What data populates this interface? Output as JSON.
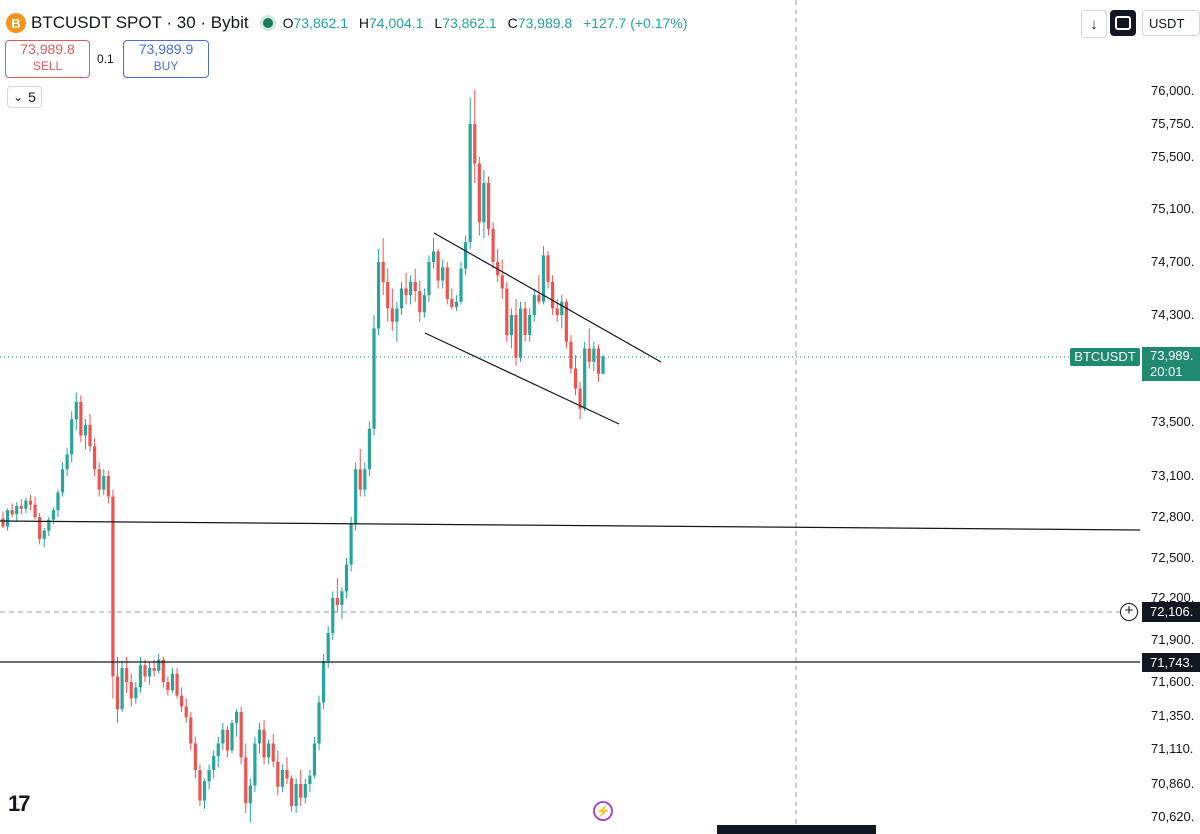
{
  "header": {
    "coin_icon": "B",
    "symbol": "BTCUSDT SPOT · 30 · Bybit",
    "ohlc": {
      "o_label": "O",
      "o": "73,862.1",
      "h_label": "H",
      "h": "74,004.1",
      "l_label": "L",
      "l": "73,862.1",
      "c_label": "C",
      "c": "73,989.8",
      "change": "+127.7 (+0.17%)"
    }
  },
  "trade": {
    "sell_price": "73,989.8",
    "sell_label": "SELL",
    "qty": "0.1",
    "buy_price": "73,989.9",
    "buy_label": "BUY"
  },
  "collapse": {
    "chevron": "⌄",
    "count": "5"
  },
  "toolbar": {
    "down_icon": "↓",
    "currency": "USDT"
  },
  "price_tag": {
    "name": "BTCUSDT",
    "price": "73,989.",
    "countdown": "20:01"
  },
  "ghost_tag": {
    "price": "72,106."
  },
  "hline_tag": {
    "price": "71,743."
  },
  "footer": {
    "logo": "17",
    "flash_icon": "⚡"
  },
  "colors": {
    "up": "#26a69a",
    "down": "#ef5350",
    "price_line": "#1f8a70",
    "drawing": "#131722",
    "dashed": "#9aa0a6"
  },
  "chart_data": {
    "type": "candlestick",
    "symbol": "BTCUSDT SPOT",
    "interval": "30",
    "exchange": "Bybit",
    "y_tick_labels": [
      "76,000.",
      "75,750.",
      "75,500.",
      "75,100.",
      "74,700.",
      "74,300.",
      "73,989.",
      "73,500.",
      "73,100.",
      "72,800.",
      "72,500.",
      "72,200.",
      "72,106.",
      "71,900.",
      "71,743.",
      "71,600.",
      "71,350.",
      "71,110.",
      "70,860.",
      "70,620."
    ],
    "price_ticks": [
      76000,
      75750,
      75500,
      75100,
      74700,
      74300,
      73500,
      73100,
      72800,
      72500,
      72200,
      71900,
      71600,
      71350,
      71110,
      70860,
      70620
    ],
    "ylim": [
      70570,
      76090
    ],
    "last_price": 73989.8,
    "horizontal_lines": [
      {
        "kind": "trendline",
        "from": 72780,
        "to": 72740
      },
      {
        "kind": "solid",
        "price": 71743
      },
      {
        "kind": "dashed",
        "price": 72106
      }
    ],
    "channel": [
      {
        "from": 74910,
        "to": 74000
      },
      {
        "from": 74220,
        "to": 73460
      }
    ],
    "candles": [
      [
        72790,
        72840,
        72720,
        72730
      ],
      [
        72730,
        72860,
        72700,
        72850
      ],
      [
        72850,
        72900,
        72800,
        72820
      ],
      [
        72820,
        72910,
        72770,
        72880
      ],
      [
        72880,
        72930,
        72820,
        72860
      ],
      [
        72860,
        72940,
        72830,
        72920
      ],
      [
        72920,
        72960,
        72850,
        72890
      ],
      [
        72890,
        72950,
        72780,
        72800
      ],
      [
        72800,
        72830,
        72600,
        72640
      ],
      [
        72640,
        72720,
        72580,
        72700
      ],
      [
        72700,
        72800,
        72660,
        72780
      ],
      [
        72780,
        72870,
        72750,
        72850
      ],
      [
        72850,
        73000,
        72800,
        72980
      ],
      [
        72980,
        73200,
        72950,
        73150
      ],
      [
        73150,
        73310,
        73100,
        73260
      ],
      [
        73260,
        73580,
        73200,
        73520
      ],
      [
        73520,
        73720,
        73440,
        73650
      ],
      [
        73650,
        73700,
        73350,
        73400
      ],
      [
        73400,
        73520,
        73300,
        73480
      ],
      [
        73480,
        73560,
        73280,
        73320
      ],
      [
        73320,
        73380,
        73100,
        73150
      ],
      [
        73150,
        73200,
        72950,
        73000
      ],
      [
        73000,
        73150,
        72960,
        73100
      ],
      [
        73100,
        73140,
        72900,
        72950
      ],
      [
        72950,
        73000,
        71480,
        71640
      ],
      [
        71640,
        71780,
        71300,
        71400
      ],
      [
        71400,
        71750,
        71380,
        71700
      ],
      [
        71700,
        71780,
        71520,
        71600
      ],
      [
        71600,
        71660,
        71420,
        71480
      ],
      [
        71480,
        71600,
        71440,
        71560
      ],
      [
        71560,
        71780,
        71520,
        71720
      ],
      [
        71720,
        71760,
        71600,
        71640
      ],
      [
        71640,
        71740,
        71580,
        71700
      ],
      [
        71700,
        71760,
        71640,
        71680
      ],
      [
        71680,
        71800,
        71660,
        71760
      ],
      [
        71760,
        71780,
        71560,
        71600
      ],
      [
        71600,
        71640,
        71500,
        71540
      ],
      [
        71540,
        71700,
        71520,
        71660
      ],
      [
        71660,
        71700,
        71480,
        71500
      ],
      [
        71500,
        71560,
        71380,
        71420
      ],
      [
        71420,
        71480,
        71300,
        71340
      ],
      [
        71340,
        71380,
        71100,
        71150
      ],
      [
        71150,
        71200,
        70900,
        70960
      ],
      [
        70960,
        71000,
        70700,
        70740
      ],
      [
        70740,
        70900,
        70680,
        70880
      ],
      [
        70880,
        71000,
        70820,
        70960
      ],
      [
        70960,
        71100,
        70900,
        71060
      ],
      [
        71060,
        71200,
        70980,
        71150
      ],
      [
        71150,
        71300,
        71100,
        71250
      ],
      [
        71250,
        71280,
        71050,
        71100
      ],
      [
        71100,
        71320,
        71080,
        71300
      ],
      [
        71300,
        71400,
        71200,
        71380
      ],
      [
        71380,
        71420,
        71000,
        71050
      ],
      [
        71050,
        71150,
        70650,
        70720
      ],
      [
        70720,
        70900,
        70580,
        70850
      ],
      [
        70850,
        71200,
        70800,
        71150
      ],
      [
        71150,
        71300,
        71080,
        71250
      ],
      [
        71250,
        71320,
        71000,
        71050
      ],
      [
        71050,
        71180,
        71000,
        71150
      ],
      [
        71150,
        71220,
        70980,
        71020
      ],
      [
        71020,
        71100,
        70780,
        70840
      ],
      [
        70840,
        71000,
        70800,
        70960
      ],
      [
        70960,
        71050,
        70860,
        70900
      ],
      [
        70900,
        70920,
        70660,
        70700
      ],
      [
        70700,
        70900,
        70650,
        70860
      ],
      [
        70860,
        70960,
        70700,
        70760
      ],
      [
        70760,
        70900,
        70720,
        70860
      ],
      [
        70860,
        70960,
        70800,
        70920
      ],
      [
        70920,
        71200,
        70900,
        71150
      ],
      [
        71150,
        71500,
        71100,
        71450
      ],
      [
        71450,
        71800,
        71400,
        71750
      ],
      [
        71750,
        72000,
        71700,
        71950
      ],
      [
        71950,
        72250,
        71900,
        72200
      ],
      [
        72200,
        72350,
        72100,
        72150
      ],
      [
        72150,
        72280,
        72050,
        72250
      ],
      [
        72250,
        72500,
        72200,
        72450
      ],
      [
        72450,
        72800,
        72400,
        72750
      ],
      [
        72750,
        73200,
        72700,
        73150
      ],
      [
        73150,
        73300,
        72950,
        73000
      ],
      [
        73000,
        73200,
        72950,
        73150
      ],
      [
        73150,
        73500,
        73100,
        73450
      ],
      [
        73450,
        74300,
        73400,
        74200
      ],
      [
        74200,
        74800,
        74150,
        74700
      ],
      [
        74700,
        74880,
        74450,
        74550
      ],
      [
        74550,
        74650,
        74250,
        74350
      ],
      [
        74350,
        74500,
        74180,
        74250
      ],
      [
        74250,
        74400,
        74100,
        74350
      ],
      [
        74350,
        74550,
        74300,
        74500
      ],
      [
        74500,
        74620,
        74380,
        74450
      ],
      [
        74450,
        74600,
        74380,
        74550
      ],
      [
        74550,
        74650,
        74400,
        74480
      ],
      [
        74480,
        74560,
        74250,
        74320
      ],
      [
        74320,
        74500,
        74280,
        74450
      ],
      [
        74450,
        74750,
        74400,
        74700
      ],
      [
        74700,
        74880,
        74650,
        74780
      ],
      [
        74780,
        74800,
        74500,
        74560
      ],
      [
        74560,
        74720,
        74500,
        74660
      ],
      [
        74660,
        74700,
        74380,
        74420
      ],
      [
        74420,
        74500,
        74340,
        74360
      ],
      [
        74360,
        74450,
        74330,
        74400
      ],
      [
        74400,
        74700,
        74380,
        74650
      ],
      [
        74650,
        74900,
        74600,
        74850
      ],
      [
        74850,
        75950,
        74800,
        75750
      ],
      [
        75750,
        76020,
        75300,
        75450
      ],
      [
        75450,
        75500,
        74900,
        75000
      ],
      [
        75000,
        75400,
        74880,
        75300
      ],
      [
        75300,
        75350,
        74900,
        74950
      ],
      [
        74950,
        75000,
        74650,
        74700
      ],
      [
        74700,
        74800,
        74550,
        74600
      ],
      [
        74600,
        74720,
        74420,
        74500
      ],
      [
        74500,
        74550,
        74100,
        74150
      ],
      [
        74150,
        74350,
        74050,
        74300
      ],
      [
        74300,
        74420,
        73920,
        73980
      ],
      [
        73980,
        74400,
        73950,
        74350
      ],
      [
        74350,
        74400,
        74100,
        74150
      ],
      [
        74150,
        74350,
        74100,
        74300
      ],
      [
        74300,
        74500,
        74250,
        74450
      ],
      [
        74450,
        74600,
        74380,
        74400
      ],
      [
        74400,
        74820,
        74380,
        74750
      ],
      [
        74750,
        74780,
        74500,
        74550
      ],
      [
        74550,
        74600,
        74300,
        74350
      ],
      [
        74350,
        74420,
        74250,
        74300
      ],
      [
        74300,
        74450,
        74200,
        74400
      ],
      [
        74400,
        74420,
        74050,
        74100
      ],
      [
        74100,
        74150,
        73860,
        73900
      ],
      [
        73900,
        74000,
        73700,
        73750
      ],
      [
        73750,
        73800,
        73520,
        73600
      ],
      [
        73600,
        74100,
        73580,
        74050
      ],
      [
        74050,
        74200,
        73900,
        73950
      ],
      [
        73950,
        74100,
        73880,
        74050
      ],
      [
        74050,
        74080,
        73800,
        73860
      ],
      [
        73860,
        74004,
        73862,
        73990
      ]
    ]
  }
}
